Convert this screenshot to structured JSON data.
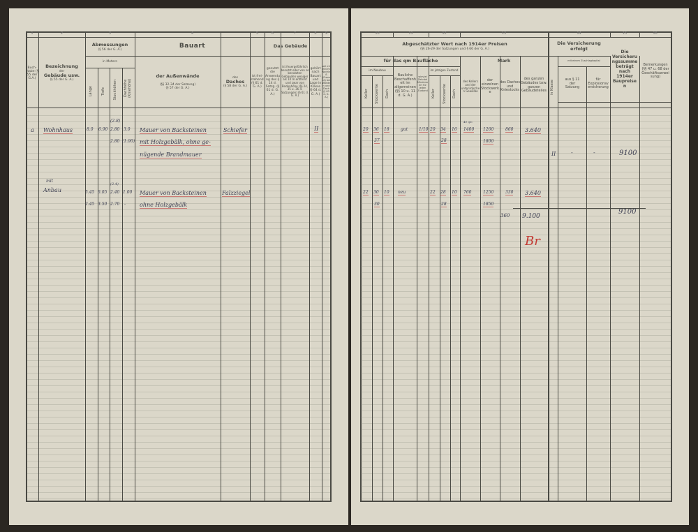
{
  "left": {
    "col_numbers": [
      "1",
      "2",
      "3",
      "4",
      "5",
      "6",
      "7",
      "8",
      "9"
    ],
    "buchstabe": "Buch-stabe (§ 55 der G.A.)",
    "bezeichnung": {
      "l1": "Bezeichnung",
      "l2": "der",
      "l3": "Gebäude usw.",
      "l4": "(§ 55 der G. A.)"
    },
    "abmessungen": {
      "title": "Abmessungen",
      "sub": "(§ 56 der G. A.)",
      "unit": "in Metern",
      "cols": [
        "Länge",
        "Tiefe",
        "Stockhöhen",
        "Dachhöhe (Kniehöhe)"
      ]
    },
    "bauart": {
      "title": "Bauart",
      "wall": "der Außenwände",
      "wall_ref1": "(§§ 32-34 der Satzung)",
      "wall_ref2": "(§ 57 der G. A.)",
      "roof1": "des",
      "roof2": "Daches",
      "roof_ref": "(§ 58 der G. A.)"
    },
    "gebaeude": {
      "title": "Das Gebäude",
      "c5": "ist frei-stehend (§ 61 d. G. A.)",
      "c6": "genutzt die Anwendung des § 14 d. Satzg. (§ 61 d. G. A.)",
      "c7": "ist feuergefährlich benutzt oder von so benutzten Gebäuden weniger als 10 m entfernt und zwar von Bodenhöhe (§§ 24, 35 u. 36 d. Satzungen) (§ 61 d. G. A.)",
      "c8": "gehört nach Bauart und Lage in Klasse (§ 64 d. G. A.)",
      "c9": "soll mit einem Nachlaß (Prozent) bei Wänden und Dach (§ 63 d. G. A.)"
    }
  },
  "right": {
    "col_numbers": [
      "10",
      "11",
      "12",
      "13",
      "14",
      "15",
      "16"
    ],
    "wert_title": "Abgeschätzter Wert nach 1914er Preisen",
    "wert_sub": "(§§ 26-29 der Satzungen und § 66 der G. A.)",
    "qm": "für das qm Baufläche",
    "mark": "Mark",
    "neubau": "im Neubau",
    "sub3": [
      "Keller",
      "Stockwerke",
      "Dach"
    ],
    "baulich": "Bauliche Beschaffenheit im allgemeinen (§§ 10 u. 11 d. G. A.)",
    "zehntel": "wieviel Zehntel Minderwert für jeden Zustand",
    "jetzig": "im jetzigen Zustand",
    "mark_cols": [
      "des Kellers und der unterirdischen Gewölbe",
      "der einzelnen Stockwerke",
      "des Daches und Kniestocks",
      "des ganzen Gebäudes bzw. ganzen Gebäudeteiles"
    ],
    "versicherung": "Die Versicherung erfolgt",
    "klasse": "in Klasse",
    "zuschlag": "mit einem Zuschlagkapital",
    "aus": "aus § 11 der Satzung",
    "explosion": "für Explosionsversicherung",
    "summe": "Die Versicherungssumme beträgt nach 1914er Baupreisen",
    "bemerkungen": "Bemerkungen (§§ 47 u. 68 der Geschäftsanweisung)"
  },
  "entries": {
    "r1": {
      "letter": "a",
      "name": "Wohnhaus",
      "dims": [
        "8.0",
        "6.90",
        "2.80",
        "3.0"
      ],
      "dims_above": "(2.8)",
      "dims2": [
        "2.80",
        "(1.00)"
      ],
      "wall": [
        "Mauer von Backsteinen",
        "mit Holzgebälk, ohne ge-",
        "nügende Brandmauer"
      ],
      "roof": "Schiefer",
      "klasse": "II",
      "neubau": [
        "20",
        "36",
        "18"
      ],
      "neubau2": "37",
      "baulich": "gut",
      "zehntel": "1/10",
      "jetzt": [
        "20",
        "34",
        "16"
      ],
      "jetzt2": "28",
      "keller_note": "40 qm",
      "keller": "1400",
      "stock": "1260",
      "stock2": "1800",
      "dach": "860",
      "ganz": "3.640",
      "vers_klasse": "II",
      "aus": "-",
      "explosion": "-",
      "summe": "9100"
    },
    "r2": {
      "pre": "mit",
      "name": "Anbau",
      "dims": [
        "5.45",
        "6.05",
        "2.40",
        "1.00"
      ],
      "dims_above": "(2.4)",
      "dims2": [
        "2.45",
        "3.50",
        "2.70",
        "-"
      ],
      "wall": [
        "Mauer von Backsteinen",
        "ohne Holzgebälk"
      ],
      "roof": "Falzziegel",
      "neubau": [
        "22",
        "30",
        "10"
      ],
      "neubau2": "30",
      "baulich": "neu",
      "jetzt": [
        "22",
        "28",
        "10"
      ],
      "jetzt2": "28",
      "keller": "760",
      "stock": "1250",
      "stock2": "1850",
      "dach": "330",
      "ganz": "3.640"
    },
    "totals": {
      "label": "360",
      "ganz": "9.100",
      "summe": "9100",
      "initials": "Br"
    }
  }
}
